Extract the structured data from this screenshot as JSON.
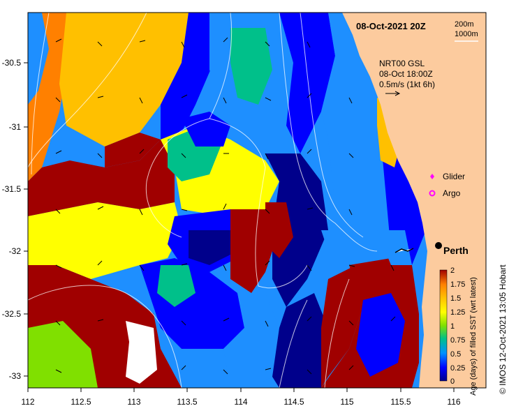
{
  "map": {
    "title": "08-Oct-2021 20Z",
    "contours_legend": [
      "200m",
      "1000m"
    ],
    "current_source": "NRT00 GSL",
    "current_time": "08-Oct 18:00Z",
    "current_scale": "0.5m/s (1kt 6h)",
    "city": "Perth",
    "markers": [
      {
        "label": "Glider",
        "color": "#ff00ff"
      },
      {
        "label": "Argo",
        "color": "#ff00ff"
      }
    ],
    "x_ticks": [
      "112",
      "112.5",
      "113",
      "113.5",
      "114",
      "114.5",
      "115",
      "115.5",
      "116"
    ],
    "y_ticks": [
      "-30.5",
      "-31",
      "-31.5",
      "-32",
      "-32.5",
      "-33"
    ],
    "colorbar": {
      "label": "Age (days) of filled SST (wrt latest)",
      "ticks": [
        "0",
        "0.25",
        "0.5",
        "0.75",
        "1",
        "1.25",
        "1.5",
        "1.75",
        "2"
      ],
      "colors": [
        "#00008b",
        "#0000ff",
        "#0090ff",
        "#00ccff",
        "#00c08a",
        "#80e000",
        "#ffff00",
        "#ffc000",
        "#ff8000",
        "#a00000"
      ]
    },
    "credit": "© IMOS 12-Oct-2021 13:05 Hobart",
    "land_color": "#fccb9e"
  }
}
